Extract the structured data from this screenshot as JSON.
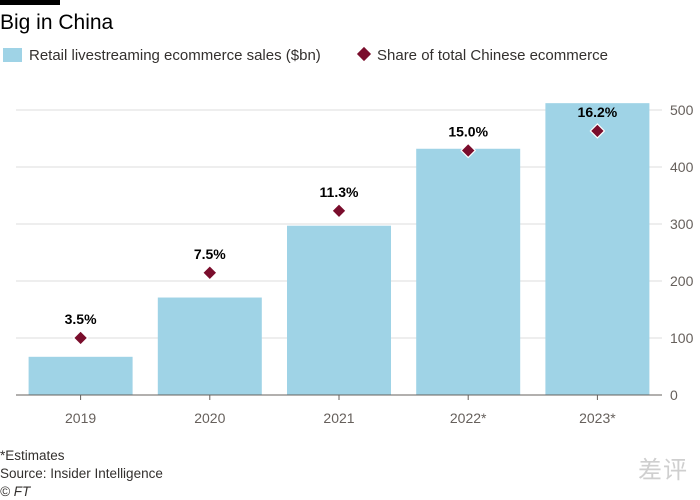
{
  "title": "Big in China",
  "legend": {
    "bars_label": "Retail livestreaming ecommerce sales ($bn)",
    "points_label": "Share of total Chinese ecommerce"
  },
  "colors": {
    "bar": "#9fd3e6",
    "point": "#7a0d2c",
    "grid": "#dedede",
    "axis": "#66605c"
  },
  "chart_data": {
    "type": "bar",
    "categories": [
      "2019",
      "2020",
      "2021",
      "2022*",
      "2023*"
    ],
    "series": [
      {
        "name": "Retail livestreaming ecommerce sales ($bn)",
        "kind": "bar",
        "values": [
          67,
          171,
          297,
          432,
          512
        ]
      },
      {
        "name": "Share of total Chinese ecommerce",
        "kind": "scatter",
        "values": [
          3.5,
          7.5,
          11.3,
          15.0,
          16.2
        ],
        "labels": [
          "3.5%",
          "7.5%",
          "11.3%",
          "15.0%",
          "16.2%"
        ]
      }
    ],
    "yaxis": {
      "position": "right",
      "ylim": [
        0,
        500
      ],
      "ticks": [
        "0",
        "100",
        "200",
        "300",
        "400",
        "500"
      ]
    },
    "grid": true,
    "legend_position": "top-left"
  },
  "footer": {
    "note": "*Estimates",
    "source": "Source: Insider Intelligence",
    "credit": "© FT"
  },
  "watermark": "差评"
}
